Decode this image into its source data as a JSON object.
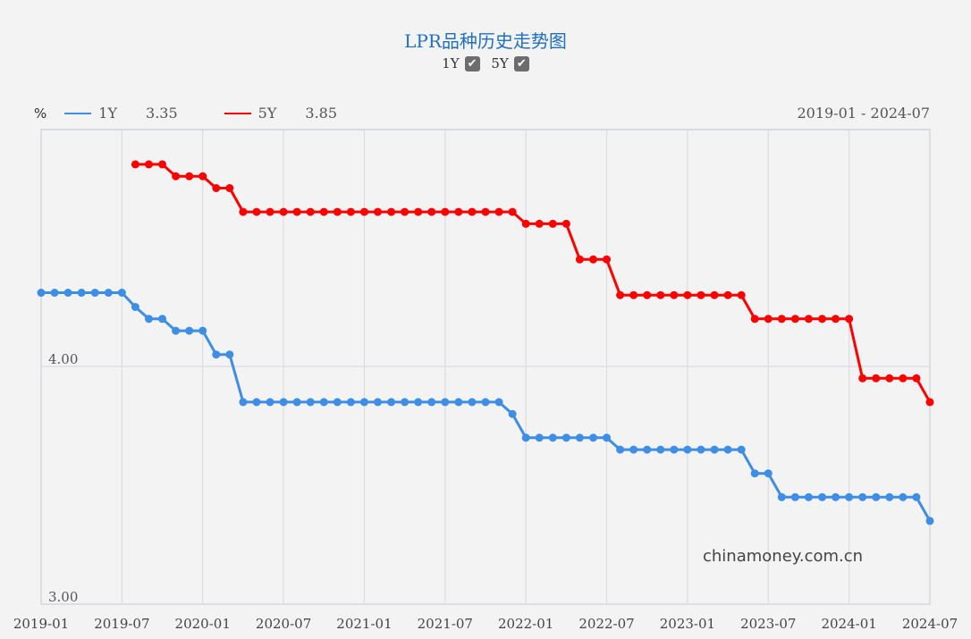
{
  "header": {
    "title": "LPR品种历史走势图",
    "toggles": [
      {
        "label": "1Y",
        "checked": true
      },
      {
        "label": "5Y",
        "checked": true
      }
    ]
  },
  "legend": {
    "unit": "%",
    "items": [
      {
        "name": "1Y",
        "latest": "3.35",
        "color": "#3f8ee6"
      },
      {
        "name": "5Y",
        "latest": "3.85",
        "color": "#ff0000"
      }
    ]
  },
  "range_label": "2019-01 - 2024-07",
  "watermark": "chinamoney.com.cn",
  "chart_data": {
    "type": "line",
    "title": "LPR品种历史走势图",
    "xlabel": "",
    "ylabel": "%",
    "ylim": [
      3.0,
      4.98
    ],
    "yticks": [
      "3.00",
      "4.00"
    ],
    "xticks": [
      "2019-01",
      "2019-07",
      "2020-01",
      "2020-07",
      "2021-01",
      "2021-07",
      "2022-01",
      "2022-07",
      "2023-01",
      "2023-07",
      "2024-01",
      "2024-07"
    ],
    "grid": true,
    "legend_position": "top-left",
    "x": [
      "2019-01",
      "2019-02",
      "2019-03",
      "2019-04",
      "2019-05",
      "2019-06",
      "2019-07",
      "2019-08",
      "2019-09",
      "2019-10",
      "2019-11",
      "2019-12",
      "2020-01",
      "2020-02",
      "2020-03",
      "2020-04",
      "2020-05",
      "2020-06",
      "2020-07",
      "2020-08",
      "2020-09",
      "2020-10",
      "2020-11",
      "2020-12",
      "2021-01",
      "2021-02",
      "2021-03",
      "2021-04",
      "2021-05",
      "2021-06",
      "2021-07",
      "2021-08",
      "2021-09",
      "2021-10",
      "2021-11",
      "2021-12",
      "2022-01",
      "2022-02",
      "2022-03",
      "2022-04",
      "2022-05",
      "2022-06",
      "2022-07",
      "2022-08",
      "2022-09",
      "2022-10",
      "2022-11",
      "2022-12",
      "2023-01",
      "2023-02",
      "2023-03",
      "2023-04",
      "2023-05",
      "2023-06",
      "2023-07",
      "2023-08",
      "2023-09",
      "2023-10",
      "2023-11",
      "2023-12",
      "2024-01",
      "2024-02",
      "2024-03",
      "2024-04",
      "2024-05",
      "2024-06",
      "2024-07"
    ],
    "series": [
      {
        "name": "1Y",
        "color": "#3f8ee6",
        "values": [
          4.31,
          4.31,
          4.31,
          4.31,
          4.31,
          4.31,
          4.31,
          4.25,
          4.2,
          4.2,
          4.15,
          4.15,
          4.15,
          4.05,
          4.05,
          3.85,
          3.85,
          3.85,
          3.85,
          3.85,
          3.85,
          3.85,
          3.85,
          3.85,
          3.85,
          3.85,
          3.85,
          3.85,
          3.85,
          3.85,
          3.85,
          3.85,
          3.85,
          3.85,
          3.85,
          3.8,
          3.7,
          3.7,
          3.7,
          3.7,
          3.7,
          3.7,
          3.7,
          3.65,
          3.65,
          3.65,
          3.65,
          3.65,
          3.65,
          3.65,
          3.65,
          3.65,
          3.65,
          3.55,
          3.55,
          3.45,
          3.45,
          3.45,
          3.45,
          3.45,
          3.45,
          3.45,
          3.45,
          3.45,
          3.45,
          3.45,
          3.35
        ]
      },
      {
        "name": "5Y",
        "color": "#ff0000",
        "values": [
          null,
          null,
          null,
          null,
          null,
          null,
          null,
          4.85,
          4.85,
          4.85,
          4.8,
          4.8,
          4.8,
          4.75,
          4.75,
          4.65,
          4.65,
          4.65,
          4.65,
          4.65,
          4.65,
          4.65,
          4.65,
          4.65,
          4.65,
          4.65,
          4.65,
          4.65,
          4.65,
          4.65,
          4.65,
          4.65,
          4.65,
          4.65,
          4.65,
          4.65,
          4.6,
          4.6,
          4.6,
          4.6,
          4.45,
          4.45,
          4.45,
          4.3,
          4.3,
          4.3,
          4.3,
          4.3,
          4.3,
          4.3,
          4.3,
          4.3,
          4.3,
          4.2,
          4.2,
          4.2,
          4.2,
          4.2,
          4.2,
          4.2,
          4.2,
          3.95,
          3.95,
          3.95,
          3.95,
          3.95,
          3.85
        ]
      }
    ]
  }
}
